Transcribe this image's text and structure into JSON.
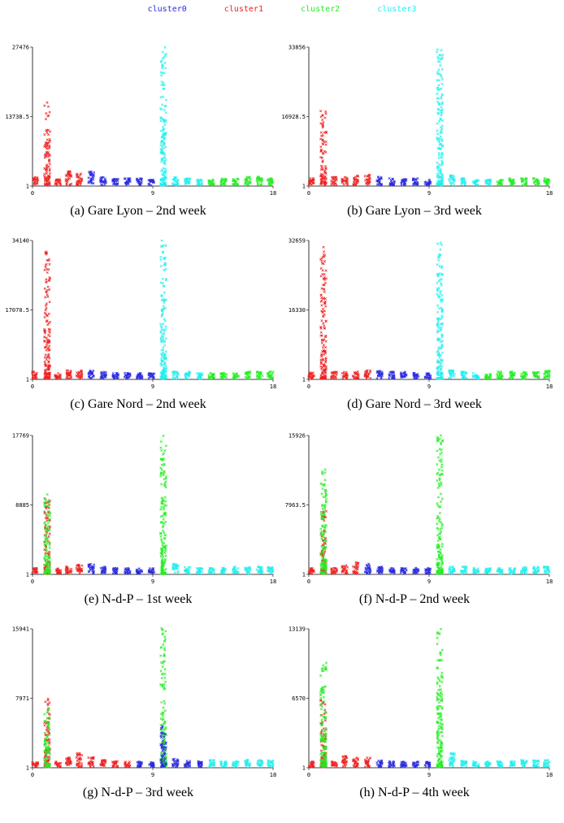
{
  "legend": [
    {
      "label": "cluster0",
      "color": "#2a2ae0"
    },
    {
      "label": "cluster1",
      "color": "#ee2222"
    },
    {
      "label": "cluster2",
      "color": "#22ee22"
    },
    {
      "label": "cluster3",
      "color": "#22eeee"
    }
  ],
  "chart_data": [
    {
      "type": "scatter",
      "caption": "(a) Gare Lyon – 2nd week",
      "yticks": [
        "1",
        "13738.5",
        "27476"
      ],
      "xticks": [
        "0",
        "9",
        "18"
      ],
      "ymax": 27476,
      "xlim": [
        0,
        18
      ],
      "groups": [
        [
          0.2,
          "c1",
          0.06
        ],
        [
          1.1,
          "c1",
          0.6
        ],
        [
          1.9,
          "c1",
          0.05
        ],
        [
          2.7,
          "c1",
          0.1
        ],
        [
          3.5,
          "c1",
          0.09
        ],
        [
          4.4,
          "c0",
          0.1
        ],
        [
          5.3,
          "c0",
          0.06
        ],
        [
          6.2,
          "c0",
          0.05
        ],
        [
          7.1,
          "c0",
          0.05
        ],
        [
          8.0,
          "c0",
          0.05
        ],
        [
          8.9,
          "c0",
          0.04
        ],
        [
          9.8,
          "c3",
          1.0
        ],
        [
          10.7,
          "c3",
          0.06
        ],
        [
          11.6,
          "c3",
          0.05
        ],
        [
          12.5,
          "c3",
          0.04
        ],
        [
          13.4,
          "c2",
          0.04
        ],
        [
          14.3,
          "c2",
          0.05
        ],
        [
          15.2,
          "c2",
          0.05
        ],
        [
          16.1,
          "c2",
          0.06
        ],
        [
          17.0,
          "c2",
          0.06
        ],
        [
          17.8,
          "c2",
          0.05
        ]
      ]
    },
    {
      "type": "scatter",
      "caption": "(b) Gare Lyon – 3rd week",
      "yticks": [
        "1",
        "16928.5",
        "33856"
      ],
      "xticks": [
        "0",
        "9",
        "18"
      ],
      "ymax": 33856,
      "xlim": [
        0,
        18
      ],
      "groups": [
        [
          0.2,
          "c1",
          0.05
        ],
        [
          1.1,
          "c1",
          0.55
        ],
        [
          1.9,
          "c1",
          0.06
        ],
        [
          2.7,
          "c1",
          0.06
        ],
        [
          3.5,
          "c1",
          0.07
        ],
        [
          4.4,
          "c1",
          0.08
        ],
        [
          5.3,
          "c0",
          0.06
        ],
        [
          6.2,
          "c0",
          0.05
        ],
        [
          7.1,
          "c0",
          0.05
        ],
        [
          8.0,
          "c0",
          0.05
        ],
        [
          8.9,
          "c0",
          0.04
        ],
        [
          9.8,
          "c3",
          1.0
        ],
        [
          10.7,
          "c3",
          0.07
        ],
        [
          11.6,
          "c3",
          0.05
        ],
        [
          12.5,
          "c3",
          0.04
        ],
        [
          13.4,
          "c3",
          0.04
        ],
        [
          14.3,
          "c2",
          0.04
        ],
        [
          15.2,
          "c2",
          0.05
        ],
        [
          16.1,
          "c2",
          0.05
        ],
        [
          17.0,
          "c2",
          0.05
        ],
        [
          17.8,
          "c2",
          0.05
        ]
      ]
    },
    {
      "type": "scatter",
      "caption": "(c) Gare Nord – 2nd week",
      "yticks": [
        "1",
        "17070.5",
        "34140"
      ],
      "xticks": [
        "0",
        "9",
        "18"
      ],
      "ymax": 34140,
      "xlim": [
        0,
        18
      ],
      "groups": [
        [
          0.2,
          "c1",
          0.05
        ],
        [
          1.1,
          "c1",
          0.95
        ],
        [
          1.9,
          "c1",
          0.04
        ],
        [
          2.7,
          "c1",
          0.06
        ],
        [
          3.5,
          "c1",
          0.06
        ],
        [
          4.4,
          "c0",
          0.06
        ],
        [
          5.3,
          "c0",
          0.05
        ],
        [
          6.2,
          "c0",
          0.04
        ],
        [
          7.1,
          "c0",
          0.04
        ],
        [
          8.0,
          "c0",
          0.04
        ],
        [
          8.9,
          "c0",
          0.04
        ],
        [
          9.8,
          "c3",
          1.0
        ],
        [
          10.7,
          "c3",
          0.05
        ],
        [
          11.6,
          "c3",
          0.05
        ],
        [
          12.5,
          "c3",
          0.04
        ],
        [
          13.4,
          "c2",
          0.04
        ],
        [
          14.3,
          "c2",
          0.04
        ],
        [
          15.2,
          "c2",
          0.04
        ],
        [
          16.1,
          "c2",
          0.05
        ],
        [
          17.0,
          "c2",
          0.05
        ],
        [
          17.8,
          "c2",
          0.05
        ]
      ]
    },
    {
      "type": "scatter",
      "caption": "(d) Gare Nord – 3rd week",
      "yticks": [
        "1",
        "16330",
        "32659"
      ],
      "xticks": [
        "0",
        "9",
        "18"
      ],
      "ymax": 32659,
      "xlim": [
        0,
        18
      ],
      "groups": [
        [
          0.2,
          "c1",
          0.05
        ],
        [
          1.1,
          "c1",
          0.95
        ],
        [
          1.9,
          "c1",
          0.05
        ],
        [
          2.7,
          "c1",
          0.05
        ],
        [
          3.5,
          "c1",
          0.05
        ],
        [
          4.4,
          "c1",
          0.06
        ],
        [
          5.3,
          "c0",
          0.06
        ],
        [
          6.2,
          "c0",
          0.05
        ],
        [
          7.1,
          "c0",
          0.05
        ],
        [
          8.0,
          "c0",
          0.04
        ],
        [
          8.9,
          "c0",
          0.04
        ],
        [
          9.8,
          "c3",
          1.0
        ],
        [
          10.7,
          "c3",
          0.06
        ],
        [
          11.6,
          "c3",
          0.05
        ],
        [
          12.5,
          "c3",
          0.04
        ],
        [
          13.4,
          "c2",
          0.04
        ],
        [
          14.3,
          "c2",
          0.05
        ],
        [
          15.2,
          "c2",
          0.05
        ],
        [
          16.1,
          "c2",
          0.05
        ],
        [
          17.0,
          "c2",
          0.05
        ],
        [
          17.8,
          "c2",
          0.06
        ]
      ]
    },
    {
      "type": "scatter",
      "caption": "(e) N-d-P – 1st week",
      "yticks": [
        "1",
        "8885",
        "17769"
      ],
      "xticks": [
        "0",
        "9",
        "18"
      ],
      "ymax": 17769,
      "xlim": [
        0,
        18
      ],
      "groups": [
        [
          0.2,
          "c1",
          0.04
        ],
        [
          1.1,
          "c1",
          0.55
        ],
        [
          1.1,
          "c2",
          0.58
        ],
        [
          1.9,
          "c1",
          0.04
        ],
        [
          2.7,
          "c1",
          0.05
        ],
        [
          3.5,
          "c1",
          0.07
        ],
        [
          4.4,
          "c0",
          0.07
        ],
        [
          5.3,
          "c0",
          0.05
        ],
        [
          6.2,
          "c0",
          0.04
        ],
        [
          7.1,
          "c0",
          0.04
        ],
        [
          8.0,
          "c0",
          0.04
        ],
        [
          8.9,
          "c0",
          0.04
        ],
        [
          9.8,
          "c2",
          1.0
        ],
        [
          10.7,
          "c3",
          0.07
        ],
        [
          11.6,
          "c3",
          0.05
        ],
        [
          12.5,
          "c3",
          0.04
        ],
        [
          13.4,
          "c3",
          0.04
        ],
        [
          14.3,
          "c3",
          0.04
        ],
        [
          15.2,
          "c3",
          0.05
        ],
        [
          16.1,
          "c3",
          0.05
        ],
        [
          17.0,
          "c3",
          0.05
        ],
        [
          17.8,
          "c3",
          0.05
        ]
      ]
    },
    {
      "type": "scatter",
      "caption": "(f) N-d-P – 2nd week",
      "yticks": [
        "1",
        "7963.5",
        "15926"
      ],
      "xticks": [
        "0",
        "9",
        "18"
      ],
      "ymax": 15926,
      "xlim": [
        0,
        18
      ],
      "groups": [
        [
          0.2,
          "c1",
          0.04
        ],
        [
          1.1,
          "c1",
          0.45
        ],
        [
          1.1,
          "c2",
          0.75
        ],
        [
          1.9,
          "c1",
          0.04
        ],
        [
          2.7,
          "c1",
          0.06
        ],
        [
          3.5,
          "c1",
          0.08
        ],
        [
          4.4,
          "c0",
          0.08
        ],
        [
          5.3,
          "c0",
          0.05
        ],
        [
          6.2,
          "c0",
          0.04
        ],
        [
          7.1,
          "c0",
          0.04
        ],
        [
          8.0,
          "c0",
          0.04
        ],
        [
          8.9,
          "c0",
          0.04
        ],
        [
          9.8,
          "c2",
          1.0
        ],
        [
          10.7,
          "c3",
          0.05
        ],
        [
          11.6,
          "c3",
          0.05
        ],
        [
          12.5,
          "c3",
          0.04
        ],
        [
          13.4,
          "c3",
          0.04
        ],
        [
          14.3,
          "c3",
          0.04
        ],
        [
          15.2,
          "c3",
          0.04
        ],
        [
          16.1,
          "c3",
          0.05
        ],
        [
          17.0,
          "c3",
          0.05
        ],
        [
          17.8,
          "c3",
          0.05
        ]
      ]
    },
    {
      "type": "scatter",
      "caption": "(g) N-d-P – 3rd week",
      "yticks": [
        "1",
        "7971",
        "15941"
      ],
      "xticks": [
        "0",
        "9",
        "18"
      ],
      "ymax": 15941,
      "xlim": [
        0,
        18
      ],
      "groups": [
        [
          0.2,
          "c1",
          0.04
        ],
        [
          1.1,
          "c1",
          0.5
        ],
        [
          1.1,
          "c2",
          0.42
        ],
        [
          1.9,
          "c1",
          0.04
        ],
        [
          2.7,
          "c1",
          0.07
        ],
        [
          3.5,
          "c1",
          0.1
        ],
        [
          4.4,
          "c1",
          0.07
        ],
        [
          5.3,
          "c1",
          0.05
        ],
        [
          6.2,
          "c1",
          0.04
        ],
        [
          7.1,
          "c1",
          0.04
        ],
        [
          8.0,
          "c0",
          0.04
        ],
        [
          8.9,
          "c0",
          0.04
        ],
        [
          9.8,
          "c2",
          1.0
        ],
        [
          9.8,
          "c0",
          0.3
        ],
        [
          10.7,
          "c0",
          0.06
        ],
        [
          11.6,
          "c0",
          0.05
        ],
        [
          12.5,
          "c0",
          0.04
        ],
        [
          13.4,
          "c3",
          0.05
        ],
        [
          14.3,
          "c3",
          0.04
        ],
        [
          15.2,
          "c3",
          0.04
        ],
        [
          16.1,
          "c3",
          0.05
        ],
        [
          17.0,
          "c3",
          0.05
        ],
        [
          17.8,
          "c3",
          0.05
        ]
      ]
    },
    {
      "type": "scatter",
      "caption": "(h) N-d-P – 4th week",
      "yticks": [
        "1",
        "6570",
        "13139"
      ],
      "xticks": [
        "0",
        "9",
        "18"
      ],
      "ymax": 13139,
      "xlim": [
        0,
        18
      ],
      "groups": [
        [
          0.2,
          "c1",
          0.04
        ],
        [
          1.1,
          "c1",
          0.5
        ],
        [
          1.1,
          "c2",
          0.75
        ],
        [
          1.9,
          "c1",
          0.04
        ],
        [
          2.7,
          "c1",
          0.08
        ],
        [
          3.5,
          "c1",
          0.07
        ],
        [
          4.4,
          "c1",
          0.07
        ],
        [
          5.3,
          "c0",
          0.05
        ],
        [
          6.2,
          "c0",
          0.04
        ],
        [
          7.1,
          "c0",
          0.04
        ],
        [
          8.0,
          "c0",
          0.04
        ],
        [
          8.9,
          "c0",
          0.04
        ],
        [
          9.8,
          "c2",
          1.0
        ],
        [
          10.7,
          "c3",
          0.1
        ],
        [
          11.6,
          "c3",
          0.05
        ],
        [
          12.5,
          "c3",
          0.04
        ],
        [
          13.4,
          "c3",
          0.04
        ],
        [
          14.3,
          "c3",
          0.04
        ],
        [
          15.2,
          "c3",
          0.04
        ],
        [
          16.1,
          "c3",
          0.05
        ],
        [
          17.0,
          "c3",
          0.05
        ],
        [
          17.8,
          "c3",
          0.05
        ]
      ]
    }
  ]
}
